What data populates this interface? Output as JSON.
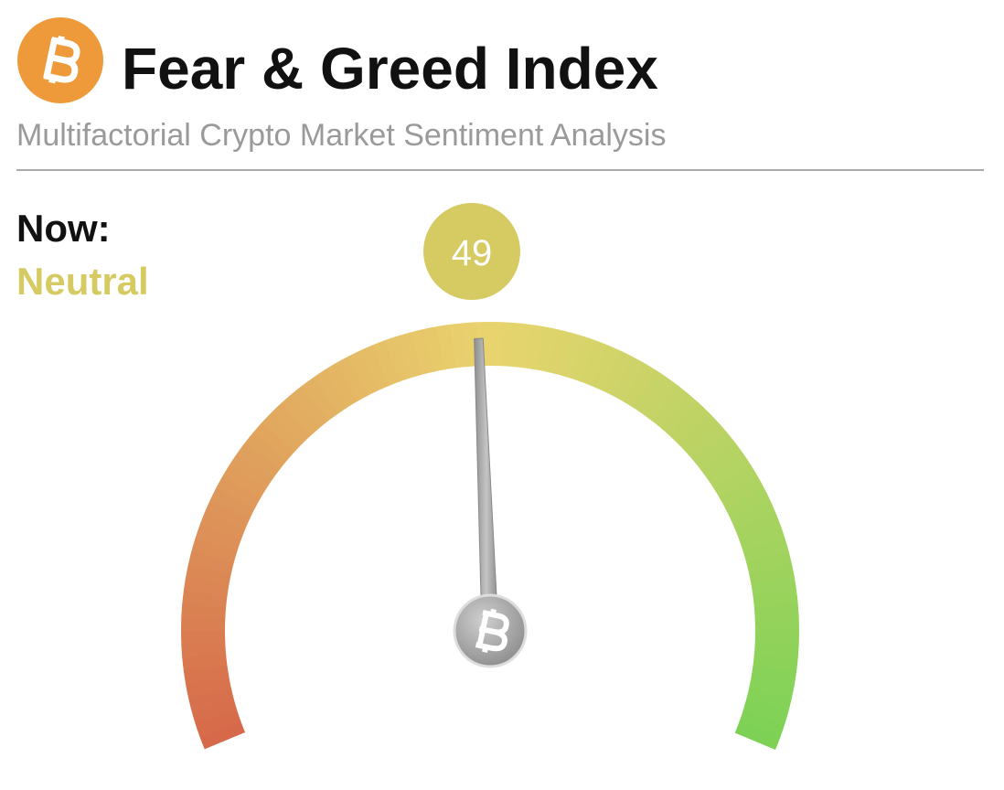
{
  "header": {
    "title": "Fear & Greed Index",
    "subtitle": "Multifactorial Crypto Market Sentiment Analysis"
  },
  "chart_data": {
    "type": "gauge",
    "label": "Now:",
    "classification": "Neutral",
    "value": 49,
    "ylim": [
      0,
      100
    ],
    "color": "#d6cb63"
  }
}
